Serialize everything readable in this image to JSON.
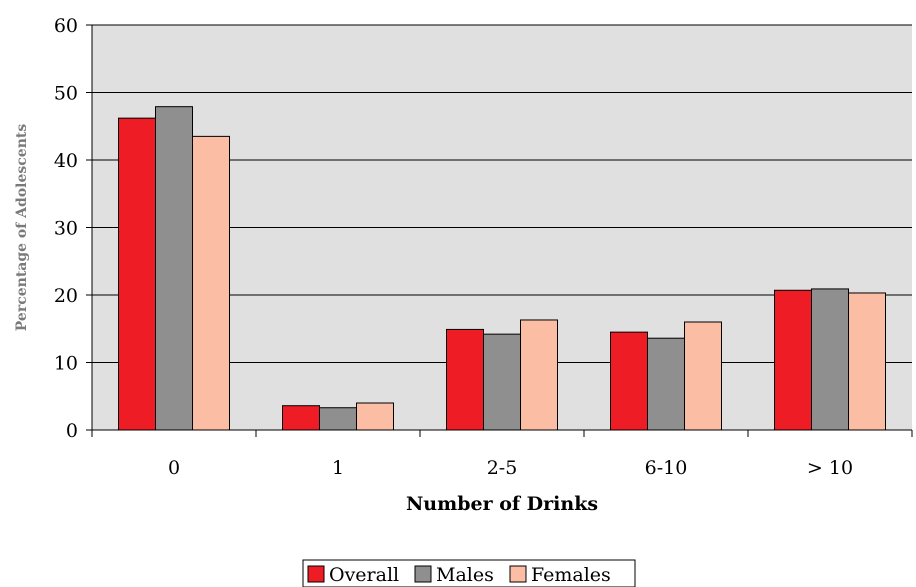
{
  "chart_data": {
    "type": "bar",
    "title": "",
    "xlabel": "Number of Drinks",
    "ylabel": "Percentage of Adolescents",
    "categories": [
      "0",
      "1",
      "2-5",
      "6-10",
      "> 10"
    ],
    "series": [
      {
        "name": "Overall",
        "color": "#ee1c25",
        "values": [
          46.2,
          3.6,
          14.9,
          14.5,
          20.7
        ]
      },
      {
        "name": "Males",
        "color": "#8f8f8f",
        "values": [
          47.9,
          3.3,
          14.2,
          13.6,
          20.9
        ]
      },
      {
        "name": "Females",
        "color": "#fbbda4",
        "values": [
          43.5,
          4.0,
          16.3,
          16.0,
          20.3
        ]
      }
    ],
    "ylim": [
      0,
      60
    ],
    "yticks": [
      "0",
      "10",
      "20",
      "30",
      "40",
      "50",
      "60"
    ],
    "grid": true,
    "plot_background": "#e0e0e0",
    "legend_position": "bottom-center"
  }
}
